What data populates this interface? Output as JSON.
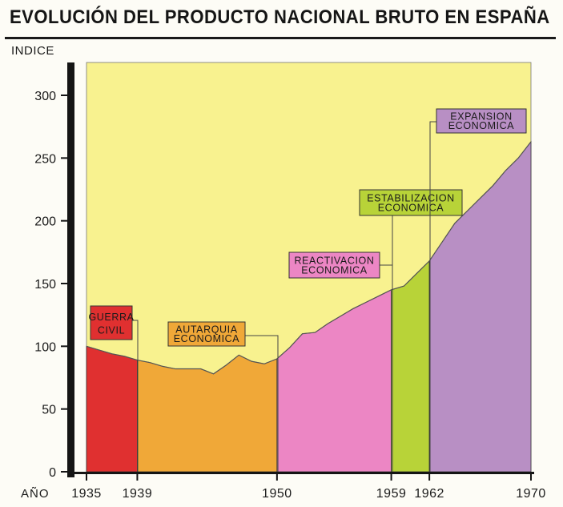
{
  "chart_data": {
    "type": "area",
    "title": "EVOLUCIÓN DEL PRODUCTO NACIONAL BRUTO EN ESPAÑA",
    "ylabel": "INDICE",
    "xlabel": "AÑO",
    "ylim": [
      0,
      300
    ],
    "y_ticks": [
      "0",
      "50",
      "100",
      "150",
      "200",
      "250",
      "300"
    ],
    "x_ticks": [
      "1935",
      "1939",
      "1950",
      "1959",
      "1962",
      "1970"
    ],
    "grid": false,
    "series": [
      {
        "x": [
          1935,
          1936,
          1937,
          1938,
          1939,
          1940,
          1941,
          1942,
          1943,
          1944,
          1945,
          1946,
          1947,
          1948,
          1949,
          1950,
          1951,
          1952,
          1953,
          1954,
          1955,
          1956,
          1957,
          1958,
          1959,
          1960,
          1961,
          1962,
          1963,
          1964,
          1965,
          1966,
          1967,
          1968,
          1969,
          1970
        ],
        "y": [
          100,
          97,
          94,
          92,
          89,
          87,
          84,
          82,
          82,
          82,
          78,
          85,
          93,
          88,
          86,
          90,
          99,
          110,
          111,
          118,
          124,
          130,
          135,
          140,
          145,
          148,
          158,
          168,
          183,
          198,
          208,
          218,
          228,
          240,
          250,
          263
        ]
      }
    ],
    "periods": [
      {
        "label": [
          "GUERRA",
          "CIVIL"
        ],
        "from": 1935,
        "to": 1939,
        "color": "#e03030"
      },
      {
        "label": [
          "AUTARQUIA",
          "ECONOMICA"
        ],
        "from": 1939,
        "to": 1950,
        "color": "#f0a838"
      },
      {
        "label": [
          "REACTIVACION",
          "ECONOMICA"
        ],
        "from": 1950,
        "to": 1959,
        "color": "#ec86c4"
      },
      {
        "label": [
          "ESTABILIZACION",
          "ECONOMICA"
        ],
        "from": 1959,
        "to": 1962,
        "color": "#b8d338"
      },
      {
        "label": [
          "EXPANSION",
          "ECONOMICA"
        ],
        "from": 1962,
        "to": 1970,
        "color": "#b88fc4"
      }
    ],
    "background_color": "#f8f28f"
  }
}
